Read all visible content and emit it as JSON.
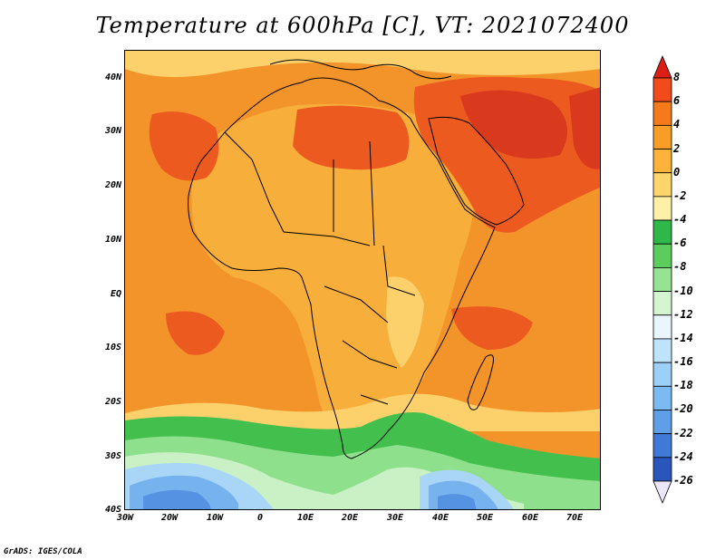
{
  "title": "Temperature at 600hPa [C], VT: 2021072400",
  "credit": "GrADS: IGES/COLA",
  "map": {
    "variable": "Temperature",
    "level": "600hPa",
    "units": "C",
    "valid_time": "2021072400",
    "lat_labels": [
      "40N",
      "30N",
      "20N",
      "10N",
      "EQ",
      "10S",
      "20S",
      "30S",
      "40S"
    ],
    "lon_labels": [
      "30W",
      "20W",
      "10W",
      "0",
      "10E",
      "20E",
      "30E",
      "40E",
      "50E",
      "60E",
      "70E"
    ]
  },
  "colorbar": {
    "labels": [
      "8",
      "6",
      "4",
      "2",
      "0",
      "-2",
      "-4",
      "-6",
      "-8",
      "-10",
      "-12",
      "-14",
      "-16",
      "-18",
      "-20",
      "-22",
      "-24",
      "-26"
    ],
    "colors": [
      "#e31a1c",
      "#f04a1a",
      "#f57a1c",
      "#f99d26",
      "#fdb23a",
      "#fdd56a",
      "#fff0a8",
      "#2eb84a",
      "#5ccd5c",
      "#96e391",
      "#d4f5d0",
      "#bfe3f9",
      "#9dd0f8",
      "#7bbaf2",
      "#5f9fe8",
      "#4583dc",
      "#2f62c4",
      "#1d42a0",
      "#0e2270",
      "#e9e6f7"
    ],
    "over_color": "#dc1e14",
    "under_color": "#ece6fb"
  },
  "fills": {
    "ocean_north": "#f4a228",
    "ocean_tropic": "#f3942a",
    "hot": "#ec5a20",
    "very_hot": "#d9391d",
    "warm_land": "#f7ae3a",
    "pale": "#fcd06a",
    "green": "#43bf4e",
    "light_green": "#8fe08c",
    "pale_green": "#c9f1c5",
    "light_blue": "#a9d6f7",
    "mid_blue": "#76b3ee",
    "blue": "#5593e2"
  }
}
